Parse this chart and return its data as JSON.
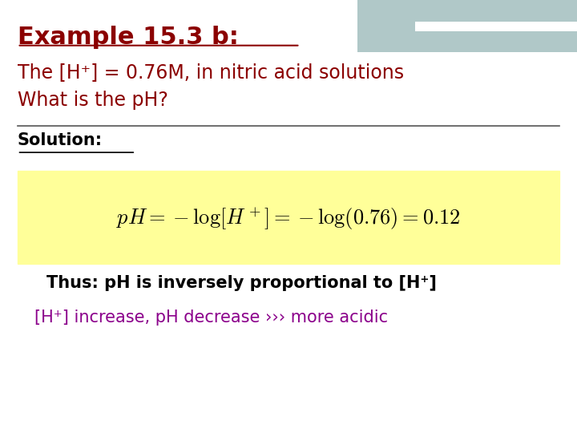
{
  "title": "Example 15.3 b:",
  "title_color": "#8B0000",
  "background_color": "#FFFFFF",
  "header_bar_color": "#5F8A8B",
  "header_accent_color": "#B0C8C8",
  "line1": "The [H⁺] = 0.76M, in nitric acid solutions",
  "line2": "What is the pH?",
  "body_text_color": "#8B0000",
  "solution_label": "Solution:",
  "solution_color": "#000000",
  "formula_bg": "#FFFF99",
  "formula_text": "$pH = -\\log[H^+] = -\\log(0.76) = 0.12$",
  "thus_text": "Thus: pH is inversely proportional to [H⁺]",
  "thus_color": "#000000",
  "last_line": "[H⁺] increase, pH decrease ››› more acidic",
  "last_color": "#8B008B",
  "divider_color": "#555555"
}
